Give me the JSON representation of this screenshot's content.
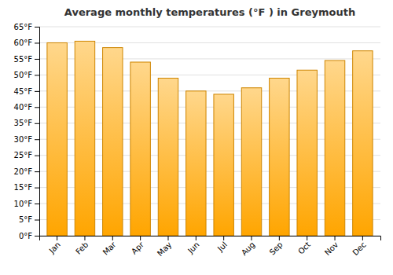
{
  "chart_data": {
    "type": "bar",
    "title": "Average monthly temperatures (°F ) in Greymouth",
    "categories": [
      "Jan",
      "Feb",
      "Mar",
      "Apr",
      "May",
      "Jun",
      "Jul",
      "Aug",
      "Sep",
      "Oct",
      "Nov",
      "Dec"
    ],
    "values": [
      60.0,
      60.5,
      58.5,
      54.0,
      49.0,
      45.0,
      44.0,
      46.0,
      49.0,
      51.5,
      54.5,
      57.5
    ],
    "color": "#FFA500",
    "ylim": [
      0,
      65
    ],
    "yticks": [
      {
        "value": 0,
        "label": "0°F"
      },
      {
        "value": 5,
        "label": "5°F"
      },
      {
        "value": 10,
        "label": "10°F"
      },
      {
        "value": 15,
        "label": "15°F"
      },
      {
        "value": 20,
        "label": "20°F"
      },
      {
        "value": 25,
        "label": "25°F"
      },
      {
        "value": 30,
        "label": "30°F"
      },
      {
        "value": 35,
        "label": "35°F"
      },
      {
        "value": 40,
        "label": "40°F"
      },
      {
        "value": 45,
        "label": "45°F"
      },
      {
        "value": 50,
        "label": "50°F"
      },
      {
        "value": 55,
        "label": "55°F"
      },
      {
        "value": 60,
        "label": "60°F"
      },
      {
        "value": 65,
        "label": "65°F"
      }
    ],
    "grid": true
  }
}
